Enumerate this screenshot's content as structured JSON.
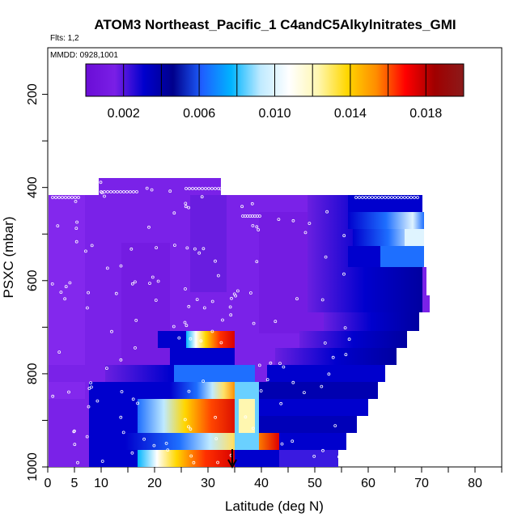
{
  "chart_data": {
    "type": "heatmap",
    "title": "ATOM3 Northeast_Pacific_1 C4andC5Alkylnitrates_GMI",
    "flights_note": "Flts: 1,2",
    "date_note": "MMDD: 0928,1001",
    "xlabel": "Latitude (deg N)",
    "ylabel": "PSXC (mbar)",
    "xlim": [
      0,
      85
    ],
    "ylim": [
      1000,
      100
    ],
    "x_ticks": [
      0,
      5,
      10,
      20,
      30,
      40,
      50,
      60,
      70,
      80
    ],
    "y_ticks": [
      200,
      400,
      600,
      800,
      1000
    ],
    "colorbar": {
      "range": [
        0,
        0.02
      ],
      "tick_values": [
        0.002,
        0.006,
        0.01,
        0.014,
        0.018
      ],
      "tick_labels": [
        "0.002",
        "0.006",
        "0.010",
        "0.014",
        "0.018"
      ],
      "colors": [
        "#6a0dd6",
        "#7a1fe6",
        "#0000cd",
        "#00008b",
        "#1e5fff",
        "#00b4ff",
        "#bfeaff",
        "#ffffff",
        "#fff7b0",
        "#ffd700",
        "#ff8c00",
        "#ff0000",
        "#a00000",
        "#8b1a1a"
      ]
    },
    "marker": {
      "latitude": 34.5,
      "pressure": 1000
    }
  }
}
